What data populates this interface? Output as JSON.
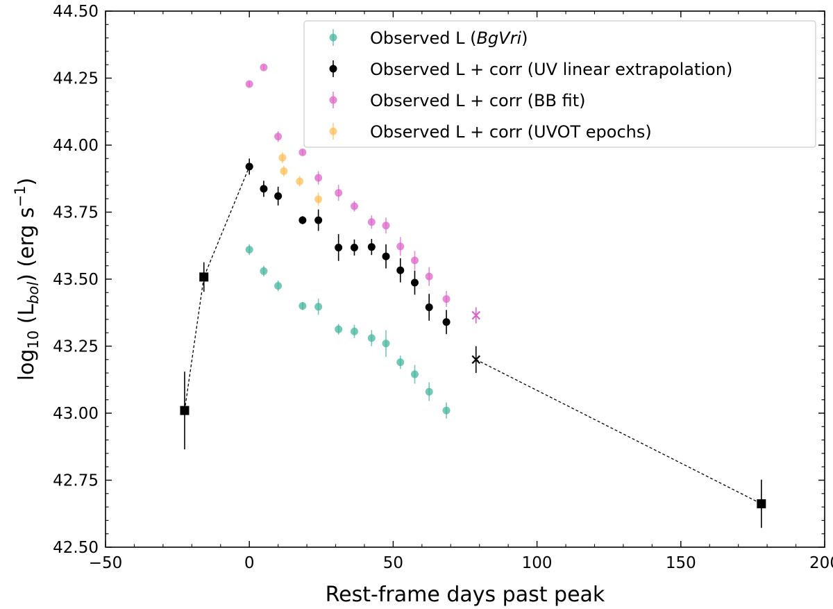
{
  "chart_data": {
    "type": "scatter",
    "title": "",
    "xlabel": "Rest-frame days past peak",
    "ylabel": {
      "prefix": "log",
      "sub": "10",
      "mid": " (L",
      "sub2": "bol",
      "post": ") (erg s",
      "sup": "−1",
      "end": ")"
    },
    "xlim": [
      -50,
      200
    ],
    "ylim": [
      42.5,
      44.5
    ],
    "xticks": [
      -50,
      0,
      50,
      100,
      150,
      200
    ],
    "yticks": [
      42.5,
      42.75,
      43.0,
      43.25,
      43.5,
      43.75,
      44.0,
      44.25,
      44.5
    ],
    "xtick_labels": [
      "−50",
      "0",
      "50",
      "100",
      "150",
      "200"
    ],
    "ytick_labels": [
      "42.50",
      "42.75",
      "43.00",
      "43.25",
      "43.50",
      "43.75",
      "44.00",
      "44.25",
      "44.50"
    ],
    "grid": false,
    "legend_position": "top-right",
    "series": [
      {
        "name": "Observed L (BgVri)",
        "legend_parts": [
          "Observed L (",
          "BgVri",
          ")"
        ],
        "color": "#3fb49a",
        "marker": "circle",
        "points": [
          [
            0,
            43.61,
            0.02
          ],
          [
            5,
            43.53,
            0.02
          ],
          [
            10,
            43.475,
            0.02
          ],
          [
            18.5,
            43.4,
            0.015
          ],
          [
            24,
            43.397,
            0.03
          ],
          [
            31,
            43.313,
            0.02
          ],
          [
            36.5,
            43.305,
            0.025
          ],
          [
            42.5,
            43.28,
            0.03
          ],
          [
            47.5,
            43.26,
            0.05
          ],
          [
            52.5,
            43.19,
            0.025
          ],
          [
            57.5,
            43.145,
            0.035
          ],
          [
            62.5,
            43.08,
            0.035
          ],
          [
            68.5,
            43.01,
            0.03
          ]
        ]
      },
      {
        "name": "Observed L + corr (UV linear extrapolation)",
        "legend_parts": [
          "Observed L + corr (UV linear extrapolation)"
        ],
        "color": "#000000",
        "marker": "circle",
        "points": [
          [
            0,
            43.92,
            0.03
          ],
          [
            5,
            43.837,
            0.03
          ],
          [
            10,
            43.81,
            0.035
          ],
          [
            18.5,
            43.72,
            0.015
          ],
          [
            24,
            43.72,
            0.04
          ],
          [
            31,
            43.618,
            0.05
          ],
          [
            36.5,
            43.618,
            0.03
          ],
          [
            42.5,
            43.62,
            0.03
          ],
          [
            47.5,
            43.585,
            0.045
          ],
          [
            52.5,
            43.533,
            0.045
          ],
          [
            57.5,
            43.487,
            0.045
          ],
          [
            62.5,
            43.395,
            0.05
          ],
          [
            68.5,
            43.34,
            0.045
          ]
        ]
      },
      {
        "name": "Observed L + corr (BB fit)",
        "legend_parts": [
          "Observed L + corr (BB fit)"
        ],
        "color": "#dc5fc8",
        "marker": "circle",
        "points": [
          [
            0,
            44.228,
            0.01
          ],
          [
            5,
            44.29,
            0.01
          ],
          [
            10,
            44.032,
            0.02
          ],
          [
            18.5,
            43.973,
            0.01
          ],
          [
            24,
            43.878,
            0.025
          ],
          [
            31,
            43.822,
            0.03
          ],
          [
            36.5,
            43.772,
            0.02
          ],
          [
            42.5,
            43.713,
            0.025
          ],
          [
            47.5,
            43.7,
            0.03
          ],
          [
            52.5,
            43.622,
            0.035
          ],
          [
            57.5,
            43.57,
            0.035
          ],
          [
            62.5,
            43.51,
            0.035
          ],
          [
            68.5,
            43.426,
            0.03
          ]
        ]
      },
      {
        "name": "Observed L + corr (UVOT epochs)",
        "legend_parts": [
          "Observed L + corr (UVOT epochs)"
        ],
        "color": "#ffbd55",
        "marker": "circle",
        "points": [
          [
            11.5,
            43.953,
            0.02
          ],
          [
            12,
            43.903,
            0.02
          ],
          [
            17.5,
            43.865,
            0.02
          ],
          [
            24,
            43.798,
            0.025
          ]
        ]
      }
    ],
    "extra_markers": [
      {
        "name": "black-squares",
        "color": "#000000",
        "marker": "square",
        "points": [
          [
            -22.5,
            43.01,
            0.145
          ],
          [
            -15.8,
            43.508,
            0.055
          ],
          [
            178,
            42.662,
            0.09
          ]
        ]
      },
      {
        "name": "black-cross",
        "color": "#000000",
        "marker": "x",
        "points": [
          [
            78.8,
            43.2,
            0.05
          ]
        ]
      },
      {
        "name": "pink-cross",
        "color": "#dc5fc8",
        "marker": "x",
        "points": [
          [
            78.8,
            43.365,
            0.03
          ]
        ]
      }
    ],
    "dashed_lines": [
      {
        "points": [
          [
            -22.5,
            43.01
          ],
          [
            -15.8,
            43.508
          ],
          [
            0,
            43.92
          ]
        ]
      },
      {
        "points": [
          [
            78.8,
            43.2
          ],
          [
            178,
            42.662
          ]
        ]
      }
    ]
  }
}
